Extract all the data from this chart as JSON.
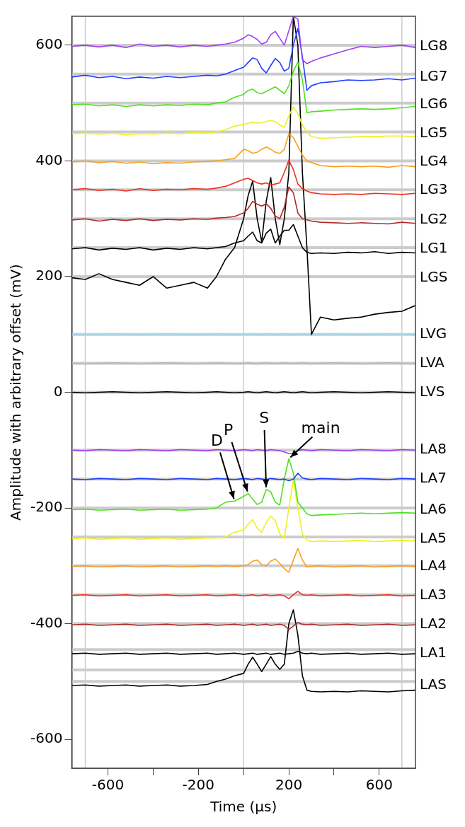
{
  "chart_data": {
    "type": "line",
    "xlabel": "Time (μs)",
    "ylabel": "Amplitude with arbitrary offset (mV)",
    "x": [
      -760,
      -700,
      -640,
      -580,
      -520,
      -460,
      -400,
      -340,
      -280,
      -220,
      -160,
      -120,
      -80,
      -40,
      0,
      20,
      40,
      60,
      80,
      100,
      120,
      140,
      160,
      180,
      200,
      220,
      240,
      260,
      280,
      300,
      340,
      400,
      460,
      520,
      580,
      640,
      700,
      760
    ],
    "xlim": [
      -760,
      760
    ],
    "xticks": [
      -600,
      {
        "value": -400,
        "label": null
      },
      -200,
      {
        "value": 0,
        "label": null
      },
      200,
      {
        "value": 400,
        "label": null
      },
      600
    ],
    "ylim": [
      -650,
      650
    ],
    "yticks": [
      -600,
      -400,
      -200,
      0,
      200,
      400,
      600
    ],
    "legend": false,
    "series": [
      {
        "name": "LG8",
        "color": "#a040f0",
        "values": [
          598,
          600,
          597,
          600,
          596,
          602,
          598,
          600,
          597,
          600,
          598,
          600,
          602,
          605,
          612,
          618,
          615,
          610,
          602,
          605,
          618,
          624,
          612,
          600,
          625,
          650,
          645,
          575,
          568,
          572,
          578,
          585,
          592,
          598,
          596,
          598,
          600,
          596
        ]
      },
      {
        "name": "LG7",
        "color": "#2040ff",
        "values": [
          545,
          548,
          544,
          546,
          542,
          545,
          543,
          546,
          544,
          546,
          548,
          547,
          550,
          556,
          562,
          570,
          578,
          575,
          560,
          552,
          565,
          577,
          570,
          555,
          560,
          600,
          629,
          580,
          522,
          530,
          535,
          537,
          540,
          539,
          540,
          542,
          540,
          543
        ]
      },
      {
        "name": "LG6",
        "color": "#50e020",
        "values": [
          497,
          498,
          495,
          497,
          494,
          497,
          495,
          497,
          496,
          498,
          497,
          500,
          502,
          510,
          515,
          522,
          524,
          518,
          516,
          520,
          524,
          528,
          522,
          516,
          530,
          555,
          571,
          540,
          483,
          485,
          486,
          488,
          489,
          490,
          489,
          490,
          492,
          494
        ]
      },
      {
        "name": "LG5",
        "color": "#f0f020",
        "values": [
          447,
          448,
          446,
          448,
          445,
          447,
          446,
          448,
          447,
          449,
          448,
          450,
          454,
          460,
          463,
          465,
          467,
          465,
          466,
          468,
          470,
          468,
          462,
          458,
          478,
          493,
          482,
          462,
          450,
          442,
          439,
          440,
          441,
          442,
          442,
          443,
          443,
          442
        ]
      },
      {
        "name": "LG4",
        "color": "#f8a020",
        "values": [
          398,
          400,
          397,
          399,
          396,
          398,
          395,
          397,
          396,
          398,
          399,
          400,
          402,
          404,
          420,
          418,
          413,
          415,
          420,
          424,
          420,
          415,
          413,
          420,
          447,
          440,
          425,
          410,
          400,
          397,
          392,
          390,
          391,
          390,
          391,
          389,
          392,
          390
        ]
      },
      {
        "name": "LG3",
        "color": "#f03020",
        "values": [
          350,
          352,
          349,
          351,
          348,
          352,
          349,
          351,
          350,
          352,
          351,
          353,
          356,
          362,
          368,
          370,
          366,
          362,
          360,
          362,
          358,
          360,
          362,
          380,
          401,
          385,
          360,
          352,
          348,
          345,
          343,
          342,
          343,
          342,
          344,
          343,
          342,
          344
        ]
      },
      {
        "name": "LG2",
        "color": "#b02828",
        "values": [
          298,
          300,
          296,
          299,
          297,
          300,
          297,
          299,
          298,
          300,
          299,
          301,
          302,
          304,
          310,
          318,
          330,
          325,
          322,
          326,
          318,
          305,
          300,
          320,
          355,
          345,
          310,
          300,
          298,
          296,
          294,
          293,
          292,
          293,
          292,
          291,
          294,
          292
        ]
      },
      {
        "name": "LG1",
        "color": "#000000",
        "values": [
          248,
          250,
          246,
          249,
          247,
          250,
          246,
          249,
          247,
          250,
          248,
          250,
          252,
          258,
          262,
          270,
          277,
          262,
          258,
          275,
          282,
          258,
          270,
          280,
          280,
          290,
          270,
          250,
          242,
          240,
          241,
          240,
          242,
          241,
          243,
          240,
          242,
          241
        ]
      },
      {
        "name": "LGS",
        "color": "#000000",
        "values": [
          198,
          195,
          205,
          195,
          190,
          185,
          200,
          180,
          185,
          190,
          180,
          200,
          230,
          250,
          300,
          340,
          365,
          300,
          260,
          330,
          371,
          300,
          255,
          300,
          380,
          650,
          600,
          380,
          250,
          100,
          130,
          125,
          128,
          130,
          135,
          138,
          140,
          150
        ]
      },
      {
        "name": "LVG",
        "color": "#a0d8ef",
        "values": [
          100,
          99,
          100,
          101,
          100,
          99,
          100,
          101,
          100,
          99,
          100,
          101,
          100,
          99,
          100,
          101,
          100,
          99,
          100,
          101,
          100,
          99,
          100,
          101,
          100,
          99,
          100,
          101,
          100,
          99,
          100,
          101,
          100,
          99,
          100,
          101,
          100,
          99
        ]
      },
      {
        "name": "LVA",
        "color": "#b8b8b8",
        "values": [
          50,
          49,
          50,
          51,
          50,
          49,
          50,
          51,
          50,
          49,
          50,
          51,
          50,
          49,
          50,
          51,
          50,
          49,
          50,
          51,
          50,
          49,
          50,
          51,
          50,
          49,
          50,
          51,
          50,
          49,
          50,
          51,
          50,
          49,
          50,
          51,
          50,
          49
        ]
      },
      {
        "name": "LVS",
        "color": "#000000",
        "values": [
          0,
          -1,
          0,
          1,
          0,
          -1,
          0,
          1,
          0,
          -1,
          0,
          1,
          0,
          -1,
          0,
          1,
          0,
          -1,
          0,
          1,
          0,
          -1,
          0,
          1,
          0,
          -1,
          0,
          1,
          0,
          -1,
          0,
          1,
          0,
          -1,
          0,
          1,
          0,
          -1
        ]
      },
      {
        "name": "LA8",
        "color": "#a040f0",
        "values": [
          -100,
          -101,
          -99,
          -100,
          -101,
          -99,
          -100,
          -101,
          -99,
          -100,
          -101,
          -99,
          -100,
          -101,
          -99,
          -100,
          -101,
          -99,
          -100,
          -101,
          -99,
          -100,
          -101,
          -103,
          -106,
          -106,
          -101,
          -99,
          -100,
          -101,
          -99,
          -100,
          -101,
          -99,
          -100,
          -101,
          -99,
          -100
        ]
      },
      {
        "name": "LA7",
        "color": "#2040ff",
        "values": [
          -150,
          -151,
          -149,
          -150,
          -151,
          -149,
          -150,
          -151,
          -149,
          -150,
          -151,
          -149,
          -150,
          -151,
          -149,
          -150,
          -151,
          -149,
          -150,
          -151,
          -149,
          -150,
          -151,
          -150,
          -153,
          -150,
          -140,
          -148,
          -150,
          -151,
          -149,
          -150,
          -151,
          -149,
          -150,
          -151,
          -149,
          -150
        ]
      },
      {
        "name": "LA6",
        "color": "#50e020",
        "values": [
          -203,
          -202,
          -204,
          -203,
          -202,
          -204,
          -203,
          -202,
          -204,
          -203,
          -202,
          -200,
          -190,
          -188,
          -180,
          -175,
          -185,
          -194,
          -190,
          -168,
          -172,
          -190,
          -195,
          -150,
          -115,
          -140,
          -190,
          -200,
          -210,
          -213,
          -212,
          -211,
          -210,
          -209,
          -210,
          -209,
          -208,
          -209
        ]
      },
      {
        "name": "LA5",
        "color": "#f0f020",
        "values": [
          -253,
          -252,
          -254,
          -253,
          -252,
          -254,
          -253,
          -252,
          -254,
          -253,
          -252,
          -252,
          -250,
          -242,
          -238,
          -228,
          -220,
          -235,
          -242,
          -225,
          -214,
          -222,
          -245,
          -252,
          -200,
          -152,
          -200,
          -245,
          -256,
          -258,
          -257,
          -258,
          -257,
          -256,
          -258,
          -257,
          -256,
          -257
        ]
      },
      {
        "name": "LA4",
        "color": "#f8a020",
        "values": [
          -301,
          -300,
          -302,
          -301,
          -300,
          -302,
          -301,
          -300,
          -302,
          -301,
          -300,
          -301,
          -300,
          -301,
          -300,
          -298,
          -292,
          -290,
          -298,
          -300,
          -292,
          -288,
          -296,
          -305,
          -311,
          -290,
          -270,
          -290,
          -302,
          -301,
          -300,
          -302,
          -301,
          -300,
          -302,
          -301,
          -300,
          -301
        ]
      },
      {
        "name": "LA3",
        "color": "#f03020",
        "values": [
          -351,
          -350,
          -352,
          -351,
          -350,
          -352,
          -351,
          -350,
          -352,
          -351,
          -350,
          -352,
          -351,
          -350,
          -352,
          -351,
          -350,
          -352,
          -351,
          -350,
          -352,
          -351,
          -350,
          -352,
          -357,
          -350,
          -344,
          -350,
          -351,
          -350,
          -352,
          -351,
          -350,
          -352,
          -351,
          -350,
          -352,
          -351
        ]
      },
      {
        "name": "LA2",
        "color": "#b02828",
        "values": [
          -402,
          -401,
          -403,
          -402,
          -401,
          -403,
          -402,
          -401,
          -403,
          -402,
          -401,
          -403,
          -402,
          -401,
          -403,
          -402,
          -401,
          -403,
          -402,
          -401,
          -403,
          -402,
          -401,
          -403,
          -410,
          -404,
          -398,
          -401,
          -402,
          -401,
          -403,
          -402,
          -401,
          -403,
          -402,
          -401,
          -403,
          -402
        ]
      },
      {
        "name": "LA1",
        "color": "#000000",
        "values": [
          -452,
          -451,
          -453,
          -452,
          -451,
          -453,
          -452,
          -451,
          -453,
          -452,
          -451,
          -453,
          -452,
          -451,
          -453,
          -452,
          -451,
          -453,
          -452,
          -451,
          -453,
          -452,
          -451,
          -453,
          -452,
          -451,
          -448,
          -451,
          -452,
          -451,
          -453,
          -452,
          -451,
          -453,
          -452,
          -451,
          -453,
          -452
        ]
      },
      {
        "name": "LAS",
        "color": "#000000",
        "values": [
          -507,
          -506,
          -508,
          -507,
          -506,
          -508,
          -507,
          -506,
          -508,
          -507,
          -505,
          -500,
          -496,
          -490,
          -486,
          -470,
          -458,
          -470,
          -483,
          -470,
          -457,
          -470,
          -479,
          -470,
          -400,
          -376,
          -420,
          -490,
          -515,
          -517,
          -518,
          -517,
          -518,
          -516,
          -517,
          -518,
          -516,
          -515
        ]
      }
    ],
    "ref_lines": [
      {
        "axis": "x",
        "value": -700,
        "color": "#cccccc"
      },
      {
        "axis": "x",
        "value": 0,
        "color": "#cccccc"
      },
      {
        "axis": "x",
        "value": 700,
        "color": "#cccccc"
      },
      {
        "axis": "y",
        "value": 600,
        "color": "#cccccc"
      },
      {
        "axis": "y",
        "value": 550,
        "color": "#cccccc"
      },
      {
        "axis": "y",
        "value": 500,
        "color": "#cccccc"
      },
      {
        "axis": "y",
        "value": 450,
        "color": "#cccccc"
      },
      {
        "axis": "y",
        "value": 400,
        "color": "#cccccc"
      },
      {
        "axis": "y",
        "value": 350,
        "color": "#cccccc"
      },
      {
        "axis": "y",
        "value": 300,
        "color": "#cccccc"
      },
      {
        "axis": "y",
        "value": 250,
        "color": "#cccccc"
      },
      {
        "axis": "y",
        "value": 200,
        "color": "#cccccc"
      },
      {
        "axis": "y",
        "value": 100,
        "color": "#cccccc"
      },
      {
        "axis": "y",
        "value": 50,
        "color": "#cccccc"
      },
      {
        "axis": "y",
        "value": 0,
        "color": "#cccccc"
      },
      {
        "axis": "y",
        "value": -100,
        "color": "#cccccc"
      },
      {
        "axis": "y",
        "value": -150,
        "color": "#cccccc"
      },
      {
        "axis": "y",
        "value": -200,
        "color": "#cccccc"
      },
      {
        "axis": "y",
        "value": -250,
        "color": "#cccccc"
      },
      {
        "axis": "y",
        "value": -300,
        "color": "#cccccc"
      },
      {
        "axis": "y",
        "value": -350,
        "color": "#cccccc"
      },
      {
        "axis": "y",
        "value": -400,
        "color": "#cccccc"
      },
      {
        "axis": "y",
        "value": -445,
        "color": "#cccccc"
      },
      {
        "axis": "y",
        "value": -480,
        "color": "#cccccc"
      },
      {
        "axis": "y",
        "value": -500,
        "color": "#cccccc"
      }
    ],
    "annotations": [
      {
        "text": "D",
        "x": -40,
        "y": -188
      },
      {
        "text": "P",
        "x": 20,
        "y": -175
      },
      {
        "text": "S",
        "x": 100,
        "y": -168
      },
      {
        "text": "main",
        "x": 200,
        "y": -115
      }
    ]
  }
}
